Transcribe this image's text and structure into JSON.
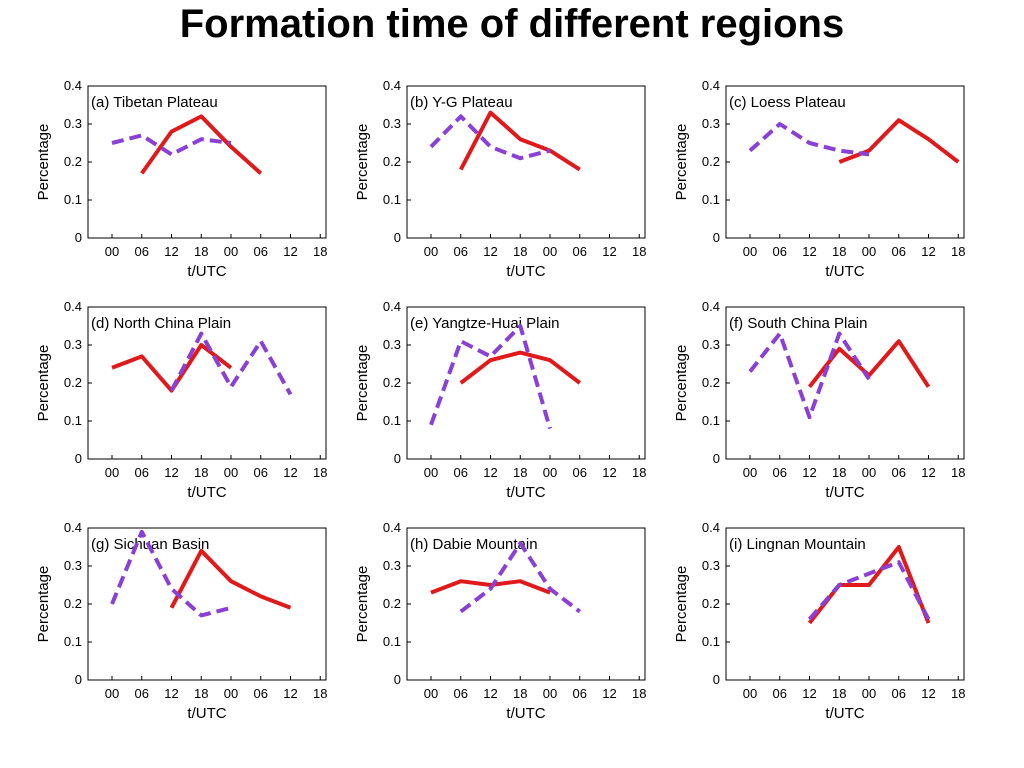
{
  "title": "Formation time of different regions",
  "chart_data": [
    {
      "type": "line",
      "title": "(a) Tibetan Plateau",
      "xlabel": "t/UTC",
      "ylabel": "Percentage",
      "ylim": [
        0,
        0.4
      ],
      "xticks": [
        "00",
        "06",
        "12",
        "18",
        "00",
        "06",
        "12",
        "18"
      ],
      "yticks": [
        "0",
        "0.1",
        "0.2",
        "0.3",
        "0.4"
      ],
      "series": [
        {
          "style": "solid",
          "color": "#e0191b",
          "x": [
            "06",
            "12",
            "18",
            "00",
            "06"
          ],
          "values": [
            0.17,
            0.28,
            0.32,
            0.24,
            0.17
          ]
        },
        {
          "style": "dashed",
          "color": "#8a3fd6",
          "x": [
            "00",
            "06",
            "12",
            "18",
            "00"
          ],
          "values": [
            0.25,
            0.27,
            0.22,
            0.26,
            0.25
          ]
        }
      ]
    },
    {
      "type": "line",
      "title": "(b) Y-G Plateau",
      "xlabel": "t/UTC",
      "ylabel": "Percentage",
      "ylim": [
        0,
        0.4
      ],
      "xticks": [
        "00",
        "06",
        "12",
        "18",
        "00",
        "06",
        "12",
        "18"
      ],
      "yticks": [
        "0",
        "0.1",
        "0.2",
        "0.3",
        "0.4"
      ],
      "series": [
        {
          "style": "solid",
          "color": "#e0191b",
          "x": [
            "06",
            "12",
            "18",
            "00",
            "06"
          ],
          "values": [
            0.18,
            0.33,
            0.26,
            0.23,
            0.18
          ]
        },
        {
          "style": "dashed",
          "color": "#8a3fd6",
          "x": [
            "00",
            "06",
            "12",
            "18",
            "00"
          ],
          "values": [
            0.24,
            0.32,
            0.24,
            0.21,
            0.23
          ]
        }
      ]
    },
    {
      "type": "line",
      "title": "(c) Loess Plateau",
      "xlabel": "t/UTC",
      "ylabel": "Percentage",
      "ylim": [
        0,
        0.4
      ],
      "xticks": [
        "00",
        "06",
        "12",
        "18",
        "00",
        "06",
        "12",
        "18"
      ],
      "yticks": [
        "0",
        "0.1",
        "0.2",
        "0.3",
        "0.4"
      ],
      "series": [
        {
          "style": "solid",
          "color": "#e0191b",
          "x": [
            "18",
            "00",
            "06",
            "12",
            "18"
          ],
          "values": [
            0.2,
            0.23,
            0.31,
            0.26,
            0.2
          ]
        },
        {
          "style": "dashed",
          "color": "#8a3fd6",
          "x": [
            "00",
            "06",
            "12",
            "18",
            "00"
          ],
          "values": [
            0.23,
            0.3,
            0.25,
            0.23,
            0.22
          ]
        }
      ]
    },
    {
      "type": "line",
      "title": "(d) North China Plain",
      "xlabel": "t/UTC",
      "ylabel": "Percentage",
      "ylim": [
        0,
        0.4
      ],
      "xticks": [
        "00",
        "06",
        "12",
        "18",
        "00",
        "06",
        "12",
        "18"
      ],
      "yticks": [
        "0",
        "0.1",
        "0.2",
        "0.3",
        "0.4"
      ],
      "series": [
        {
          "style": "solid",
          "color": "#e0191b",
          "x": [
            "00",
            "06",
            "12",
            "18",
            "00"
          ],
          "values": [
            0.24,
            0.27,
            0.18,
            0.3,
            0.24
          ]
        },
        {
          "style": "dashed",
          "color": "#8a3fd6",
          "x": [
            "12",
            "18",
            "00",
            "06",
            "12"
          ],
          "values": [
            0.18,
            0.33,
            0.19,
            0.31,
            0.17
          ]
        }
      ]
    },
    {
      "type": "line",
      "title": "(e) Yangtze-Huai Plain",
      "xlabel": "t/UTC",
      "ylabel": "Percentage",
      "ylim": [
        0,
        0.4
      ],
      "xticks": [
        "00",
        "06",
        "12",
        "18",
        "00",
        "06",
        "12",
        "18"
      ],
      "yticks": [
        "0",
        "0.1",
        "0.2",
        "0.3",
        "0.4"
      ],
      "series": [
        {
          "style": "solid",
          "color": "#e0191b",
          "x": [
            "06",
            "12",
            "18",
            "00",
            "06"
          ],
          "values": [
            0.2,
            0.26,
            0.28,
            0.26,
            0.2
          ]
        },
        {
          "style": "dashed",
          "color": "#8a3fd6",
          "x": [
            "00",
            "06",
            "12",
            "18",
            "00"
          ],
          "values": [
            0.09,
            0.31,
            0.27,
            0.35,
            0.08
          ]
        }
      ]
    },
    {
      "type": "line",
      "title": "(f) South China Plain",
      "xlabel": "t/UTC",
      "ylabel": "Percentage",
      "ylim": [
        0,
        0.4
      ],
      "xticks": [
        "00",
        "06",
        "12",
        "18",
        "00",
        "06",
        "12",
        "18"
      ],
      "yticks": [
        "0",
        "0.1",
        "0.2",
        "0.3",
        "0.4"
      ],
      "series": [
        {
          "style": "solid",
          "color": "#e0191b",
          "x": [
            "12",
            "18",
            "00",
            "06",
            "12"
          ],
          "values": [
            0.19,
            0.29,
            0.22,
            0.31,
            0.19
          ]
        },
        {
          "style": "dashed",
          "color": "#8a3fd6",
          "x": [
            "00",
            "06",
            "12",
            "18",
            "00"
          ],
          "values": [
            0.23,
            0.33,
            0.11,
            0.33,
            0.21
          ]
        }
      ]
    },
    {
      "type": "line",
      "title": "(g) Sichuan Basin",
      "xlabel": "t/UTC",
      "ylabel": "Percentage",
      "ylim": [
        0,
        0.4
      ],
      "xticks": [
        "00",
        "06",
        "12",
        "18",
        "00",
        "06",
        "12",
        "18"
      ],
      "yticks": [
        "0",
        "0.1",
        "0.2",
        "0.3",
        "0.4"
      ],
      "series": [
        {
          "style": "solid",
          "color": "#e0191b",
          "x": [
            "12",
            "18",
            "00",
            "06",
            "12"
          ],
          "values": [
            0.19,
            0.34,
            0.26,
            0.22,
            0.19
          ]
        },
        {
          "style": "dashed",
          "color": "#8a3fd6",
          "x": [
            "00",
            "06",
            "12",
            "18",
            "00"
          ],
          "values": [
            0.2,
            0.39,
            0.24,
            0.17,
            0.19
          ]
        }
      ]
    },
    {
      "type": "line",
      "title": "(h) Dabie Mountain",
      "xlabel": "t/UTC",
      "ylabel": "Percentage",
      "ylim": [
        0,
        0.4
      ],
      "xticks": [
        "00",
        "06",
        "12",
        "18",
        "00",
        "06",
        "12",
        "18"
      ],
      "yticks": [
        "0",
        "0.1",
        "0.2",
        "0.3",
        "0.4"
      ],
      "series": [
        {
          "style": "solid",
          "color": "#e0191b",
          "x": [
            "00",
            "06",
            "12",
            "18",
            "00"
          ],
          "values": [
            0.23,
            0.26,
            0.25,
            0.26,
            0.23
          ]
        },
        {
          "style": "dashed",
          "color": "#8a3fd6",
          "x": [
            "06",
            "12",
            "18",
            "00",
            "06"
          ],
          "values": [
            0.18,
            0.24,
            0.36,
            0.24,
            0.18
          ]
        }
      ]
    },
    {
      "type": "line",
      "title": "(i) Lingnan Mountain",
      "xlabel": "t/UTC",
      "ylabel": "Percentage",
      "ylim": [
        0,
        0.4
      ],
      "xticks": [
        "00",
        "06",
        "12",
        "18",
        "00",
        "06",
        "12",
        "18"
      ],
      "yticks": [
        "0",
        "0.1",
        "0.2",
        "0.3",
        "0.4"
      ],
      "series": [
        {
          "style": "solid",
          "color": "#e0191b",
          "x": [
            "12",
            "18",
            "00",
            "06",
            "12"
          ],
          "values": [
            0.15,
            0.25,
            0.25,
            0.35,
            0.15
          ]
        },
        {
          "style": "dashed",
          "color": "#8a3fd6",
          "x": [
            "12",
            "18",
            "00",
            "06",
            "12"
          ],
          "values": [
            0.16,
            0.25,
            0.28,
            0.31,
            0.16
          ]
        }
      ]
    }
  ]
}
